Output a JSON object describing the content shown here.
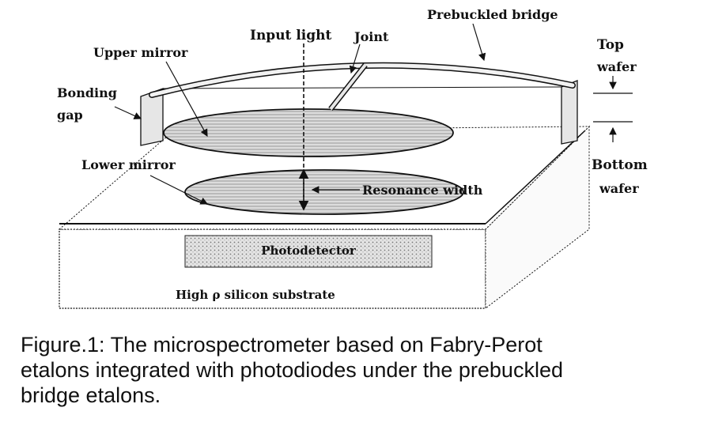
{
  "diagram": {
    "labels": {
      "input_light": "Input light",
      "joint": "Joint",
      "prebuckled_bridge": "Prebuckled bridge",
      "upper_mirror": "Upper mirror",
      "top_wafer_line1": "Top",
      "top_wafer_line2": "wafer",
      "bonding_gap_line1": "Bonding",
      "bonding_gap_line2": "gap",
      "lower_mirror": "Lower mirror",
      "resonance_width": "Resonance width",
      "bottom_wafer_line1": "Bottom",
      "bottom_wafer_line2": "wafer",
      "photodetector": "Photodetector",
      "substrate": "High ρ silicon substrate"
    }
  },
  "caption": {
    "line1": "Figure.1: The microspectrometer based on Fabry-Perot",
    "line2": "etalons integrated with photodiodes under the prebuckled",
    "line3": "bridge etalons."
  }
}
